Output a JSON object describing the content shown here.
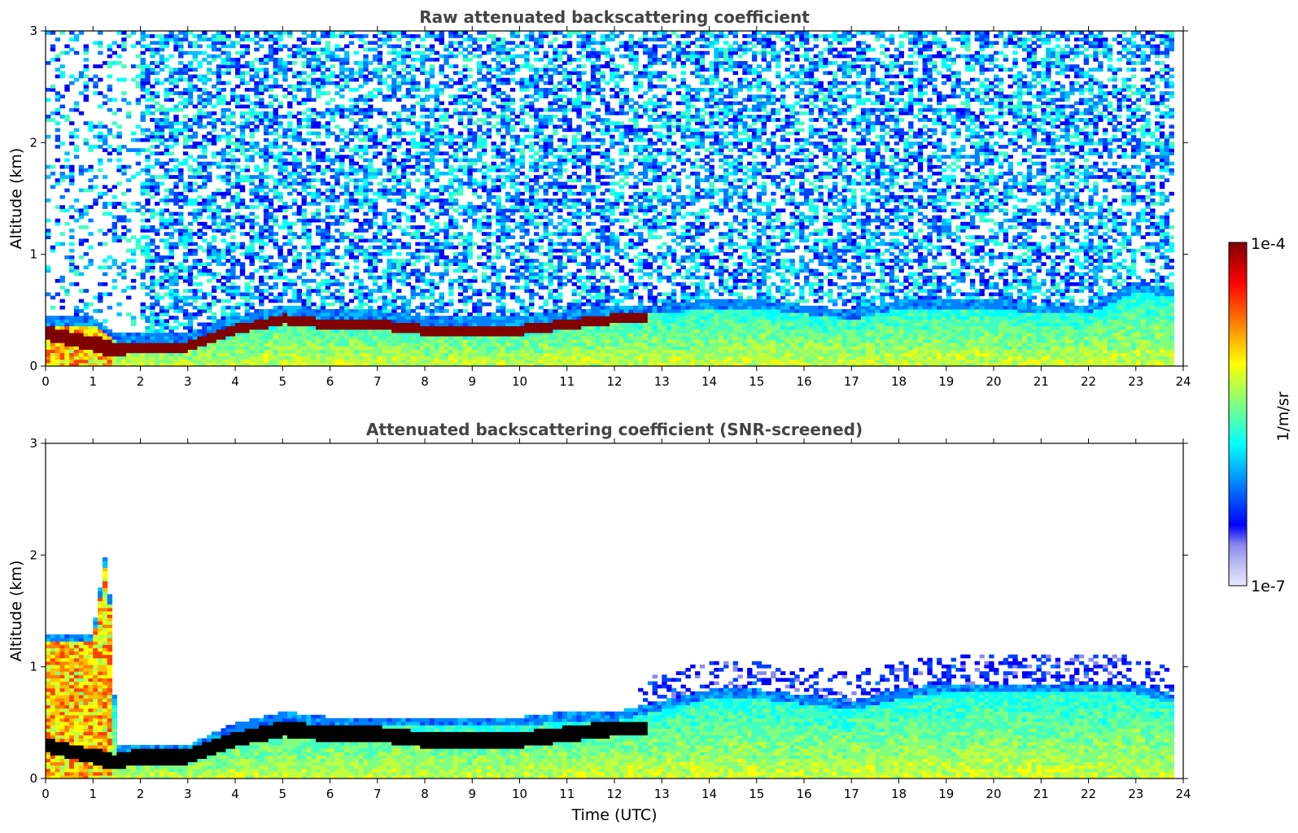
{
  "chart_data": [
    {
      "type": "heatmap",
      "title": "Raw attenuated backscattering coefficient",
      "xlabel": "",
      "ylabel": "Altitude (km)",
      "xlim": [
        0,
        24
      ],
      "ylim": [
        0,
        3
      ],
      "x_ticks": [
        "0",
        "1",
        "2",
        "3",
        "4",
        "5",
        "6",
        "7",
        "8",
        "9",
        "10",
        "11",
        "12",
        "13",
        "14",
        "15",
        "16",
        "17",
        "18",
        "19",
        "20",
        "21",
        "22",
        "23",
        "24"
      ],
      "y_ticks": [
        "0",
        "1",
        "2",
        "3"
      ],
      "grid": false,
      "data_end_time": 23.8,
      "layer_top_km": {
        "time": [
          0,
          1,
          1.5,
          2,
          3,
          4,
          5,
          6,
          7,
          8,
          9,
          10,
          11,
          12,
          13,
          14,
          15,
          16,
          17,
          18,
          19,
          20,
          21,
          22,
          23,
          23.8
        ],
        "value": [
          0.45,
          0.45,
          0.3,
          0.3,
          0.3,
          0.45,
          0.55,
          0.5,
          0.5,
          0.45,
          0.45,
          0.45,
          0.5,
          0.55,
          0.55,
          0.6,
          0.6,
          0.55,
          0.5,
          0.6,
          0.6,
          0.6,
          0.55,
          0.55,
          0.75,
          0.7
        ]
      },
      "strong_backscatter_layer_km": {
        "time": [
          0,
          1,
          1.5,
          2,
          3,
          4,
          5,
          6,
          7,
          8,
          9,
          10,
          11,
          12,
          12.7
        ],
        "center": [
          0.3,
          0.2,
          0.15,
          0.2,
          0.2,
          0.35,
          0.45,
          0.4,
          0.4,
          0.35,
          0.35,
          0.35,
          0.4,
          0.45,
          0.45
        ]
      },
      "noise_region": "above the layer, noisy low-to-moderate values up to 3 km"
    },
    {
      "type": "heatmap",
      "title": "Attenuated backscattering coefficient (SNR-screened)",
      "xlabel": "Time (UTC)",
      "ylabel": "Altitude (km)",
      "xlim": [
        0,
        24
      ],
      "ylim": [
        0,
        3
      ],
      "x_ticks": [
        "0",
        "1",
        "2",
        "3",
        "4",
        "5",
        "6",
        "7",
        "8",
        "9",
        "10",
        "11",
        "12",
        "13",
        "14",
        "15",
        "16",
        "17",
        "18",
        "19",
        "20",
        "21",
        "22",
        "23",
        "24"
      ],
      "y_ticks": [
        "0",
        "1",
        "2",
        "3"
      ],
      "grid": false,
      "data_end_time": 23.8,
      "layer_top_km": {
        "time": [
          0,
          1,
          1.3,
          1.5,
          2,
          3,
          4,
          5,
          6,
          7,
          8,
          9,
          10,
          11,
          12,
          13,
          14,
          15,
          16,
          17,
          18,
          19,
          20,
          21,
          22,
          23,
          23.8
        ],
        "value": [
          1.3,
          1.3,
          2.1,
          0.3,
          0.3,
          0.3,
          0.5,
          0.6,
          0.55,
          0.55,
          0.55,
          0.55,
          0.55,
          0.6,
          0.6,
          0.7,
          0.8,
          0.8,
          0.75,
          0.7,
          0.8,
          0.85,
          0.85,
          0.85,
          0.85,
          0.85,
          0.75
        ]
      },
      "black_masked_layer_km": {
        "time": [
          0,
          1,
          1.5,
          2,
          3,
          4,
          5,
          6,
          7,
          8,
          9,
          10,
          11,
          12,
          12.7
        ],
        "center": [
          0.3,
          0.2,
          0.15,
          0.2,
          0.2,
          0.35,
          0.45,
          0.4,
          0.4,
          0.35,
          0.35,
          0.35,
          0.4,
          0.45,
          0.45
        ]
      }
    }
  ],
  "colorbar": {
    "label": "1/m/sr",
    "min_label": "1e-7",
    "max_label": "1e-4",
    "scale": "log",
    "colors": [
      "#e8e8ff",
      "#c0c0f0",
      "#8a8af0",
      "#0000ff",
      "#0040ff",
      "#0080ff",
      "#00c0ff",
      "#00ffff",
      "#40ffc0",
      "#80ff80",
      "#c0ff40",
      "#ffff00",
      "#ffc000",
      "#ff8000",
      "#ff4000",
      "#ff0000",
      "#c00000",
      "#800000"
    ]
  }
}
